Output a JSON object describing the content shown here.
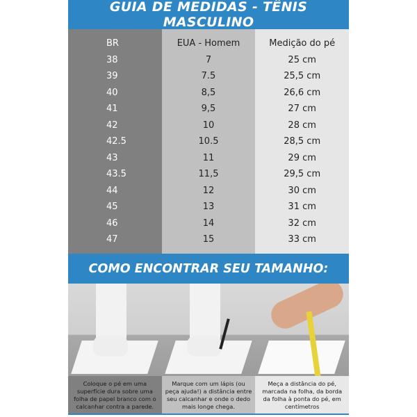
{
  "title": "GUIA DE MEDIDAS - TÊNIS MASCULINO",
  "table": {
    "headers": [
      "BR",
      "EUA - Homem",
      "Medição do pé"
    ],
    "br": [
      "38",
      "39",
      "40",
      "41",
      "42",
      "42.5",
      "43",
      "43.5",
      "44",
      "45",
      "46",
      "47"
    ],
    "eua": [
      "7",
      "7.5",
      "8,5",
      "9,5",
      "10",
      "10.5",
      "11",
      "11,5",
      "12",
      "13",
      "14",
      "15"
    ],
    "medicao": [
      "25 cm",
      "25,5 cm",
      "26,6 cm",
      "27 cm",
      "28 cm",
      "28,5 cm",
      "29 cm",
      "29,5 cm",
      "30 cm",
      "31 cm",
      "32 cm",
      "33 cm"
    ]
  },
  "how_to": {
    "title": "COMO ENCONTRAR SEU TAMANHO:",
    "steps": [
      "Coloque o pé em uma superfície dura sobre uma folha de papel branco com o calcanhar contra a parede.",
      "Marque com um lápis (ou peça ajuda!) a distância entre seu calcanhar e onde o dedo mais longe chega.",
      "Meça a distância do pé, marcada na folha, da borda da folha à ponta do pé, em centímetros"
    ]
  },
  "colors": {
    "accent": "#2e86c5",
    "col1": "#808080",
    "col2": "#c0c0c0",
    "col3": "#e6e6e6"
  }
}
